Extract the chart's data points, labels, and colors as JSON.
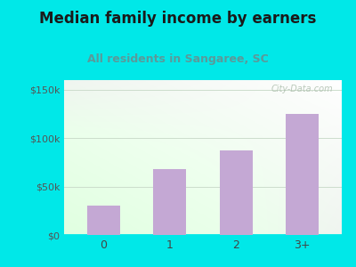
{
  "categories": [
    "0",
    "1",
    "2",
    "3+"
  ],
  "values": [
    30000,
    68000,
    87000,
    125000
  ],
  "bar_color": "#c4a8d4",
  "title": "Median family income by earners",
  "subtitle": "All residents in Sangaree, SC",
  "title_color": "#1a1a1a",
  "subtitle_color": "#5a9a9a",
  "background_color": "#00e8e8",
  "yticks": [
    0,
    50000,
    100000,
    150000
  ],
  "ytick_labels": [
    "$0",
    "$50k",
    "$100k",
    "$150k"
  ],
  "ylim": [
    0,
    160000
  ],
  "grid_color": "#ccddcc",
  "watermark": "City-Data.com",
  "plot_bg_color": "#f0faf0"
}
